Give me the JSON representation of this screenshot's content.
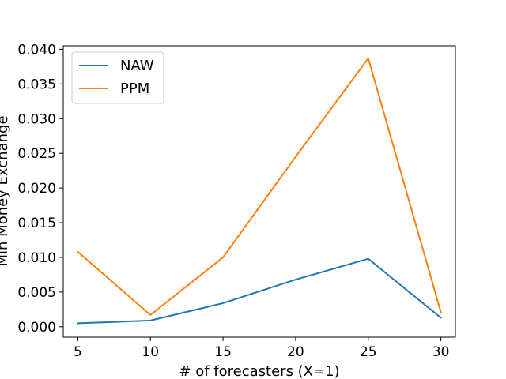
{
  "chart_data": {
    "type": "line",
    "xlabel": "# of forecasters (X=1)",
    "ylabel": "Min Money Exchange",
    "xlim": [
      4,
      31
    ],
    "ylim": [
      -0.0015,
      0.0405
    ],
    "xticks": [
      5,
      10,
      15,
      20,
      25,
      30
    ],
    "xtick_labels": [
      "5",
      "10",
      "15",
      "20",
      "25",
      "30"
    ],
    "yticks": [
      0,
      0.005,
      0.01,
      0.015,
      0.02,
      0.025,
      0.03,
      0.035,
      0.04
    ],
    "ytick_labels": [
      "0.000",
      "0.005",
      "0.010",
      "0.015",
      "0.020",
      "0.025",
      "0.030",
      "0.035",
      "0.040"
    ],
    "grid": false,
    "legend_position": "upper-left",
    "x": [
      5,
      10,
      15,
      20,
      25,
      30
    ],
    "series": [
      {
        "name": "NAW",
        "color": "#1f77b4",
        "values": [
          0.0005,
          0.0009,
          0.0034,
          0.0068,
          0.0098,
          0.0013
        ]
      },
      {
        "name": "PPM",
        "color": "#ff7f0e",
        "values": [
          0.0108,
          0.0017,
          0.01,
          0.0245,
          0.0387,
          0.0021
        ]
      }
    ]
  }
}
